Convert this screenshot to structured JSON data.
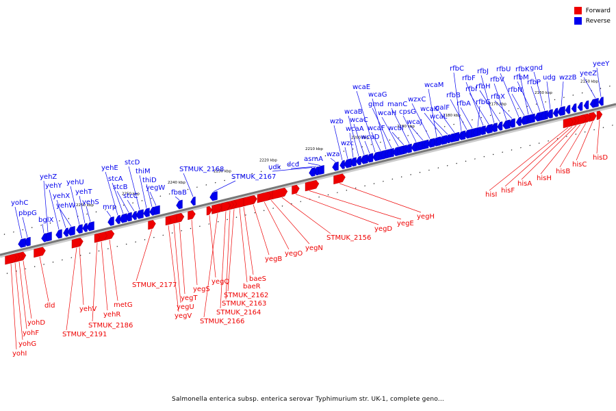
{
  "caption": "Salmonella enterica subsp. enterica serovar Typhimurium str. UK-1, complete geno...",
  "legend": [
    {
      "label": "Forward",
      "color": "#ee0000"
    },
    {
      "label": "Reverse",
      "color": "#0000ee"
    }
  ],
  "colors": {
    "forward": "#ee0000",
    "reverse": "#0000ee",
    "backbone": "#777777",
    "tick": "#222222"
  },
  "scale_labels": [
    "2150 kbp",
    "2160 kbp",
    "2170 kbp",
    "2180 kbp",
    "2190 kbp",
    "2200 kbp",
    "2210 kbp",
    "2220 kbp",
    "2230 kbp",
    "2240 kbp",
    "2250 kbp",
    "2260 kbp"
  ],
  "reverse_genes": [
    "yeeY",
    "yeeZ",
    "wzzB",
    "udg",
    "gnd",
    "rfbP",
    "rfbM",
    "rfbK",
    "rfbN",
    "rfbU",
    "rfbX",
    "rfbV",
    "rfbH",
    "rfbJ",
    "rfbI",
    "rfbF",
    "rfbG",
    "rfbA",
    "rfbB",
    "rfbC",
    "galF",
    "wcaL",
    "wcaK",
    "wcaM",
    "wzxC",
    "wcaJ",
    "cpsG",
    "manC",
    "wcaI",
    "wcaH",
    "gmd",
    "wcaG",
    "wcaF",
    "wcaE",
    "wcaD",
    "wcaC",
    "wcaB",
    "wcaA",
    "wzc",
    "wzb",
    "wza",
    "asmA",
    "dcd",
    "udk",
    "STMUK_2167",
    "STMUK_2168",
    "fbaB",
    "yegW",
    "thiD",
    "thiM",
    "stcD",
    "stcC",
    "stcB",
    "stcA",
    "yehE",
    "mrp",
    "yehS",
    "yehT",
    "yehU",
    "yehW",
    "yehX",
    "yehY",
    "yehZ",
    "bglX",
    "pbpG",
    "yohC"
  ],
  "forward_genes": [
    "hisD",
    "hisC",
    "hisB",
    "hisH",
    "hisA",
    "hisF",
    "hisI",
    "yegH",
    "yegE",
    "yegD",
    "STMUK_2156",
    "yegN",
    "yegO",
    "yegB",
    "baeS",
    "baeR",
    "STMUK_2162",
    "STMUK_2163",
    "STMUK_2164",
    "STMUK_2166",
    "yegQ",
    "yegS",
    "yegT",
    "yegU",
    "yegV",
    "STMUK_2177",
    "metG",
    "yehR",
    "STMUK_2186",
    "yehV",
    "STMUK_2191",
    "dld",
    "yohD",
    "yohF",
    "yohG",
    "yohI"
  ]
}
